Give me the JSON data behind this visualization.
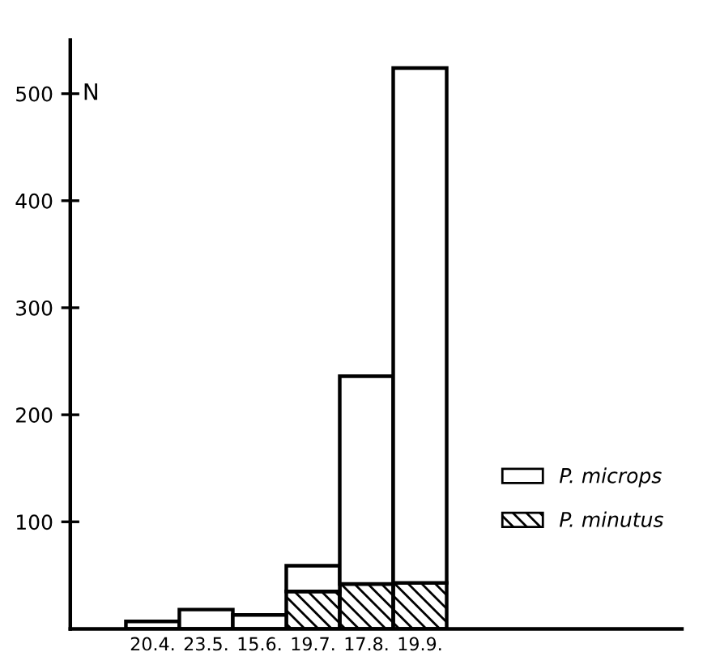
{
  "chart_data": {
    "type": "bar",
    "stacked": true,
    "ylabel": "N",
    "categories": [
      "20.4.",
      "23.5.",
      "15.6.",
      "19.7.",
      "17.8.",
      "19.9."
    ],
    "series": [
      {
        "name": "P. minutus",
        "color": "#000000",
        "values": [
          0,
          0,
          0,
          35,
          42,
          43
        ]
      },
      {
        "name": "P. microps",
        "color": "#ffffff",
        "values": [
          7,
          18,
          13,
          24,
          194,
          481
        ]
      }
    ],
    "ylim": [
      0,
      550
    ],
    "yticks": [
      100,
      200,
      300,
      400,
      500
    ],
    "grid": false,
    "legend": "right"
  }
}
